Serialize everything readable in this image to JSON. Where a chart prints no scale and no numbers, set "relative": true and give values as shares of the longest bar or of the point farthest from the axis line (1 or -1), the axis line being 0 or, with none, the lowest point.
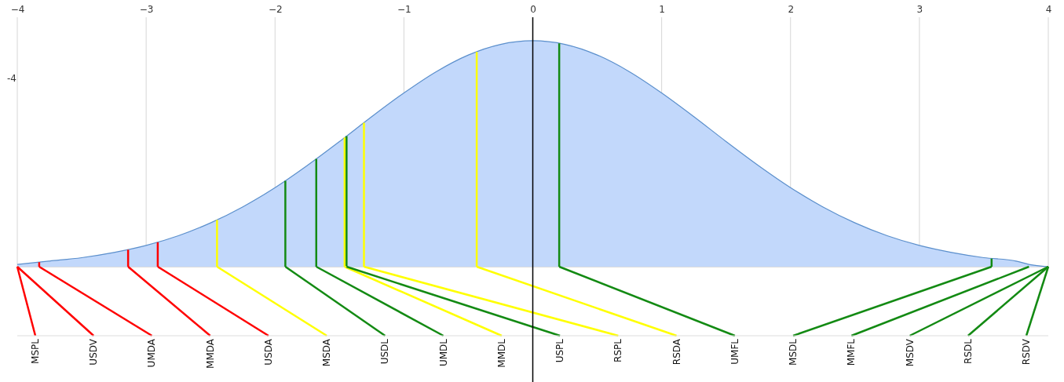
{
  "chart_data": {
    "type": "area",
    "relative": true,
    "xlim": [
      -4,
      4
    ],
    "xticks": [
      -4,
      -3,
      -2,
      -1,
      0,
      1,
      2,
      3,
      4
    ],
    "grid": "x",
    "series": [
      {
        "color": "#c2d8fb",
        "x": [
          -4,
          -3.75,
          -3.5,
          -3.25,
          -3,
          -2.75,
          -2.5,
          -2.25,
          -2,
          -1.75,
          -1.5,
          -1.25,
          -1,
          -0.75,
          -0.5,
          -0.25,
          0,
          0.25,
          0.5,
          0.75,
          1,
          1.25,
          1.5,
          1.75,
          2,
          2.25,
          2.5,
          2.75,
          3,
          3.25,
          3.5,
          3.75,
          3.85,
          4
        ],
        "values": [
          0.01,
          0.025,
          0.04,
          0.063,
          0.094,
          0.137,
          0.194,
          0.265,
          0.35,
          0.448,
          0.554,
          0.664,
          0.769,
          0.863,
          0.937,
          0.984,
          1,
          0.984,
          0.937,
          0.863,
          0.769,
          0.664,
          0.554,
          0.448,
          0.35,
          0.265,
          0.194,
          0.137,
          0.094,
          0.063,
          0.04,
          0.025,
          0.01,
          0
        ]
      },
      {
        "type": "bar",
        "x": [
          -3.83,
          -3.14,
          -2.91,
          -2.45,
          -1.92,
          -1.68,
          -1.46,
          -1.445,
          -1.31,
          -0.435,
          0.205,
          3.56
        ],
        "values": [
          0.02,
          0.075,
          0.108,
          0.207,
          0.38,
          0.477,
          0.572,
          0.578,
          0.637,
          0.95,
          0.989,
          0.036
        ],
        "colors": [
          "#ff0000",
          "#ff0000",
          "#ff0000",
          "#ffff00",
          "#138a13",
          "#138a13",
          "#ffff00",
          "#138a13",
          "#ffff00",
          "#ffff00",
          "#138a13",
          "#138a13"
        ]
      }
    ],
    "ref_lines": [
      {
        "axis": "x",
        "value": 0,
        "color": "#000000"
      }
    ],
    "annotations": [
      "-4",
      {
        "text": "MSPL",
        "x": -4,
        "y": 0
      },
      {
        "text": "USDV",
        "x": -4,
        "y": 0
      },
      {
        "text": "UMDA",
        "x": -3.83,
        "y": 0
      },
      {
        "text": "MMDA",
        "x": -3.14,
        "y": 0
      },
      {
        "text": "USDA",
        "x": -2.91,
        "y": 0
      },
      {
        "text": "MSDA",
        "x": -2.45,
        "y": 0
      },
      {
        "text": "USDL",
        "x": -1.92,
        "y": 0
      },
      {
        "text": "UMDL",
        "x": -1.68,
        "y": 0
      },
      {
        "text": "MMDL",
        "x": -1.46,
        "y": 0
      },
      {
        "text": "USPL",
        "x": -1.445,
        "y": 0
      },
      {
        "text": "RSPL",
        "x": -1.31,
        "y": 0
      },
      {
        "text": "RSDA",
        "x": -0.435,
        "y": 0
      },
      {
        "text": "UMFL",
        "x": 0.205,
        "y": 0
      },
      {
        "text": "MSDL",
        "x": 3.56,
        "y": 0
      },
      {
        "text": "MMFL",
        "x": 3.85,
        "y": 0
      },
      {
        "text": "MSDV",
        "x": 4,
        "y": 0
      },
      {
        "text": "RSDL",
        "x": 4,
        "y": 0
      },
      {
        "text": "RSDV",
        "x": 4,
        "y": 0
      }
    ]
  }
}
